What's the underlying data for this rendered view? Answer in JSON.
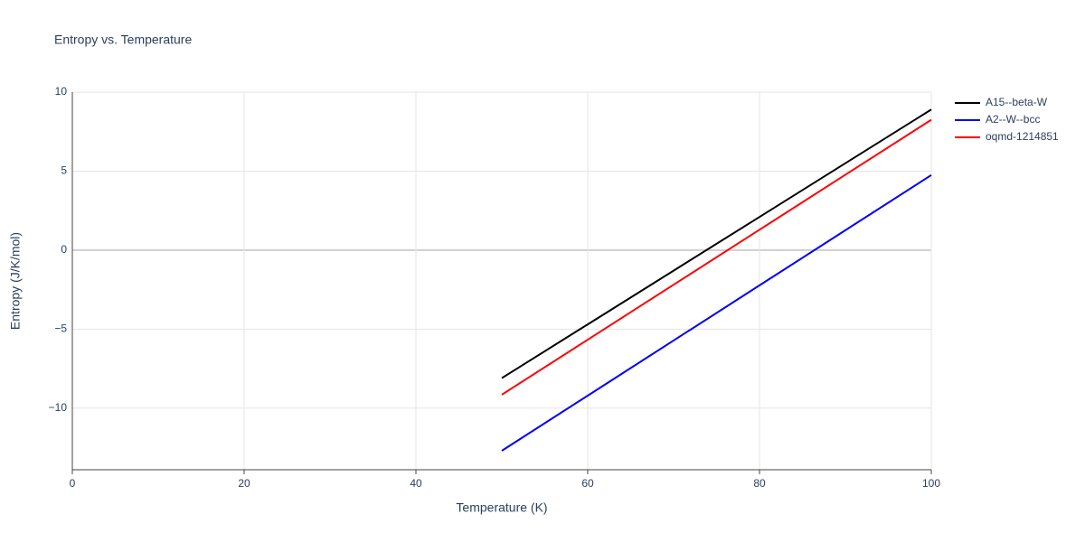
{
  "chart_data": {
    "type": "line",
    "title": "Entropy vs. Temperature",
    "x_label": "Temperature (K)",
    "y_label": "Entropy (J/K/mol)",
    "x": [
      50,
      60,
      70,
      80,
      90,
      100
    ],
    "series": [
      {
        "name": "A15--beta-W",
        "color": "#000000",
        "values": [
          -8.1,
          -4.7,
          -1.3,
          2.1,
          5.5,
          8.9
        ]
      },
      {
        "name": "A2--W--bcc",
        "color": "#0000ff",
        "values": [
          -12.7,
          -9.21,
          -5.72,
          -2.23,
          1.26,
          4.75
        ]
      },
      {
        "name": "oqmd-1214851",
        "color": "#ff0000",
        "values": [
          -9.15,
          -5.67,
          -2.19,
          1.29,
          4.77,
          8.25
        ]
      }
    ],
    "xlim": [
      0,
      100
    ],
    "xticks": [
      0,
      20,
      40,
      60,
      80,
      100
    ],
    "ylim": [
      -13.9,
      10
    ],
    "yticks": [
      {
        "value": -10,
        "label": "−10"
      },
      {
        "value": -5,
        "label": "−5"
      },
      0,
      5,
      10
    ],
    "grid": true,
    "legend": "outside-right"
  }
}
